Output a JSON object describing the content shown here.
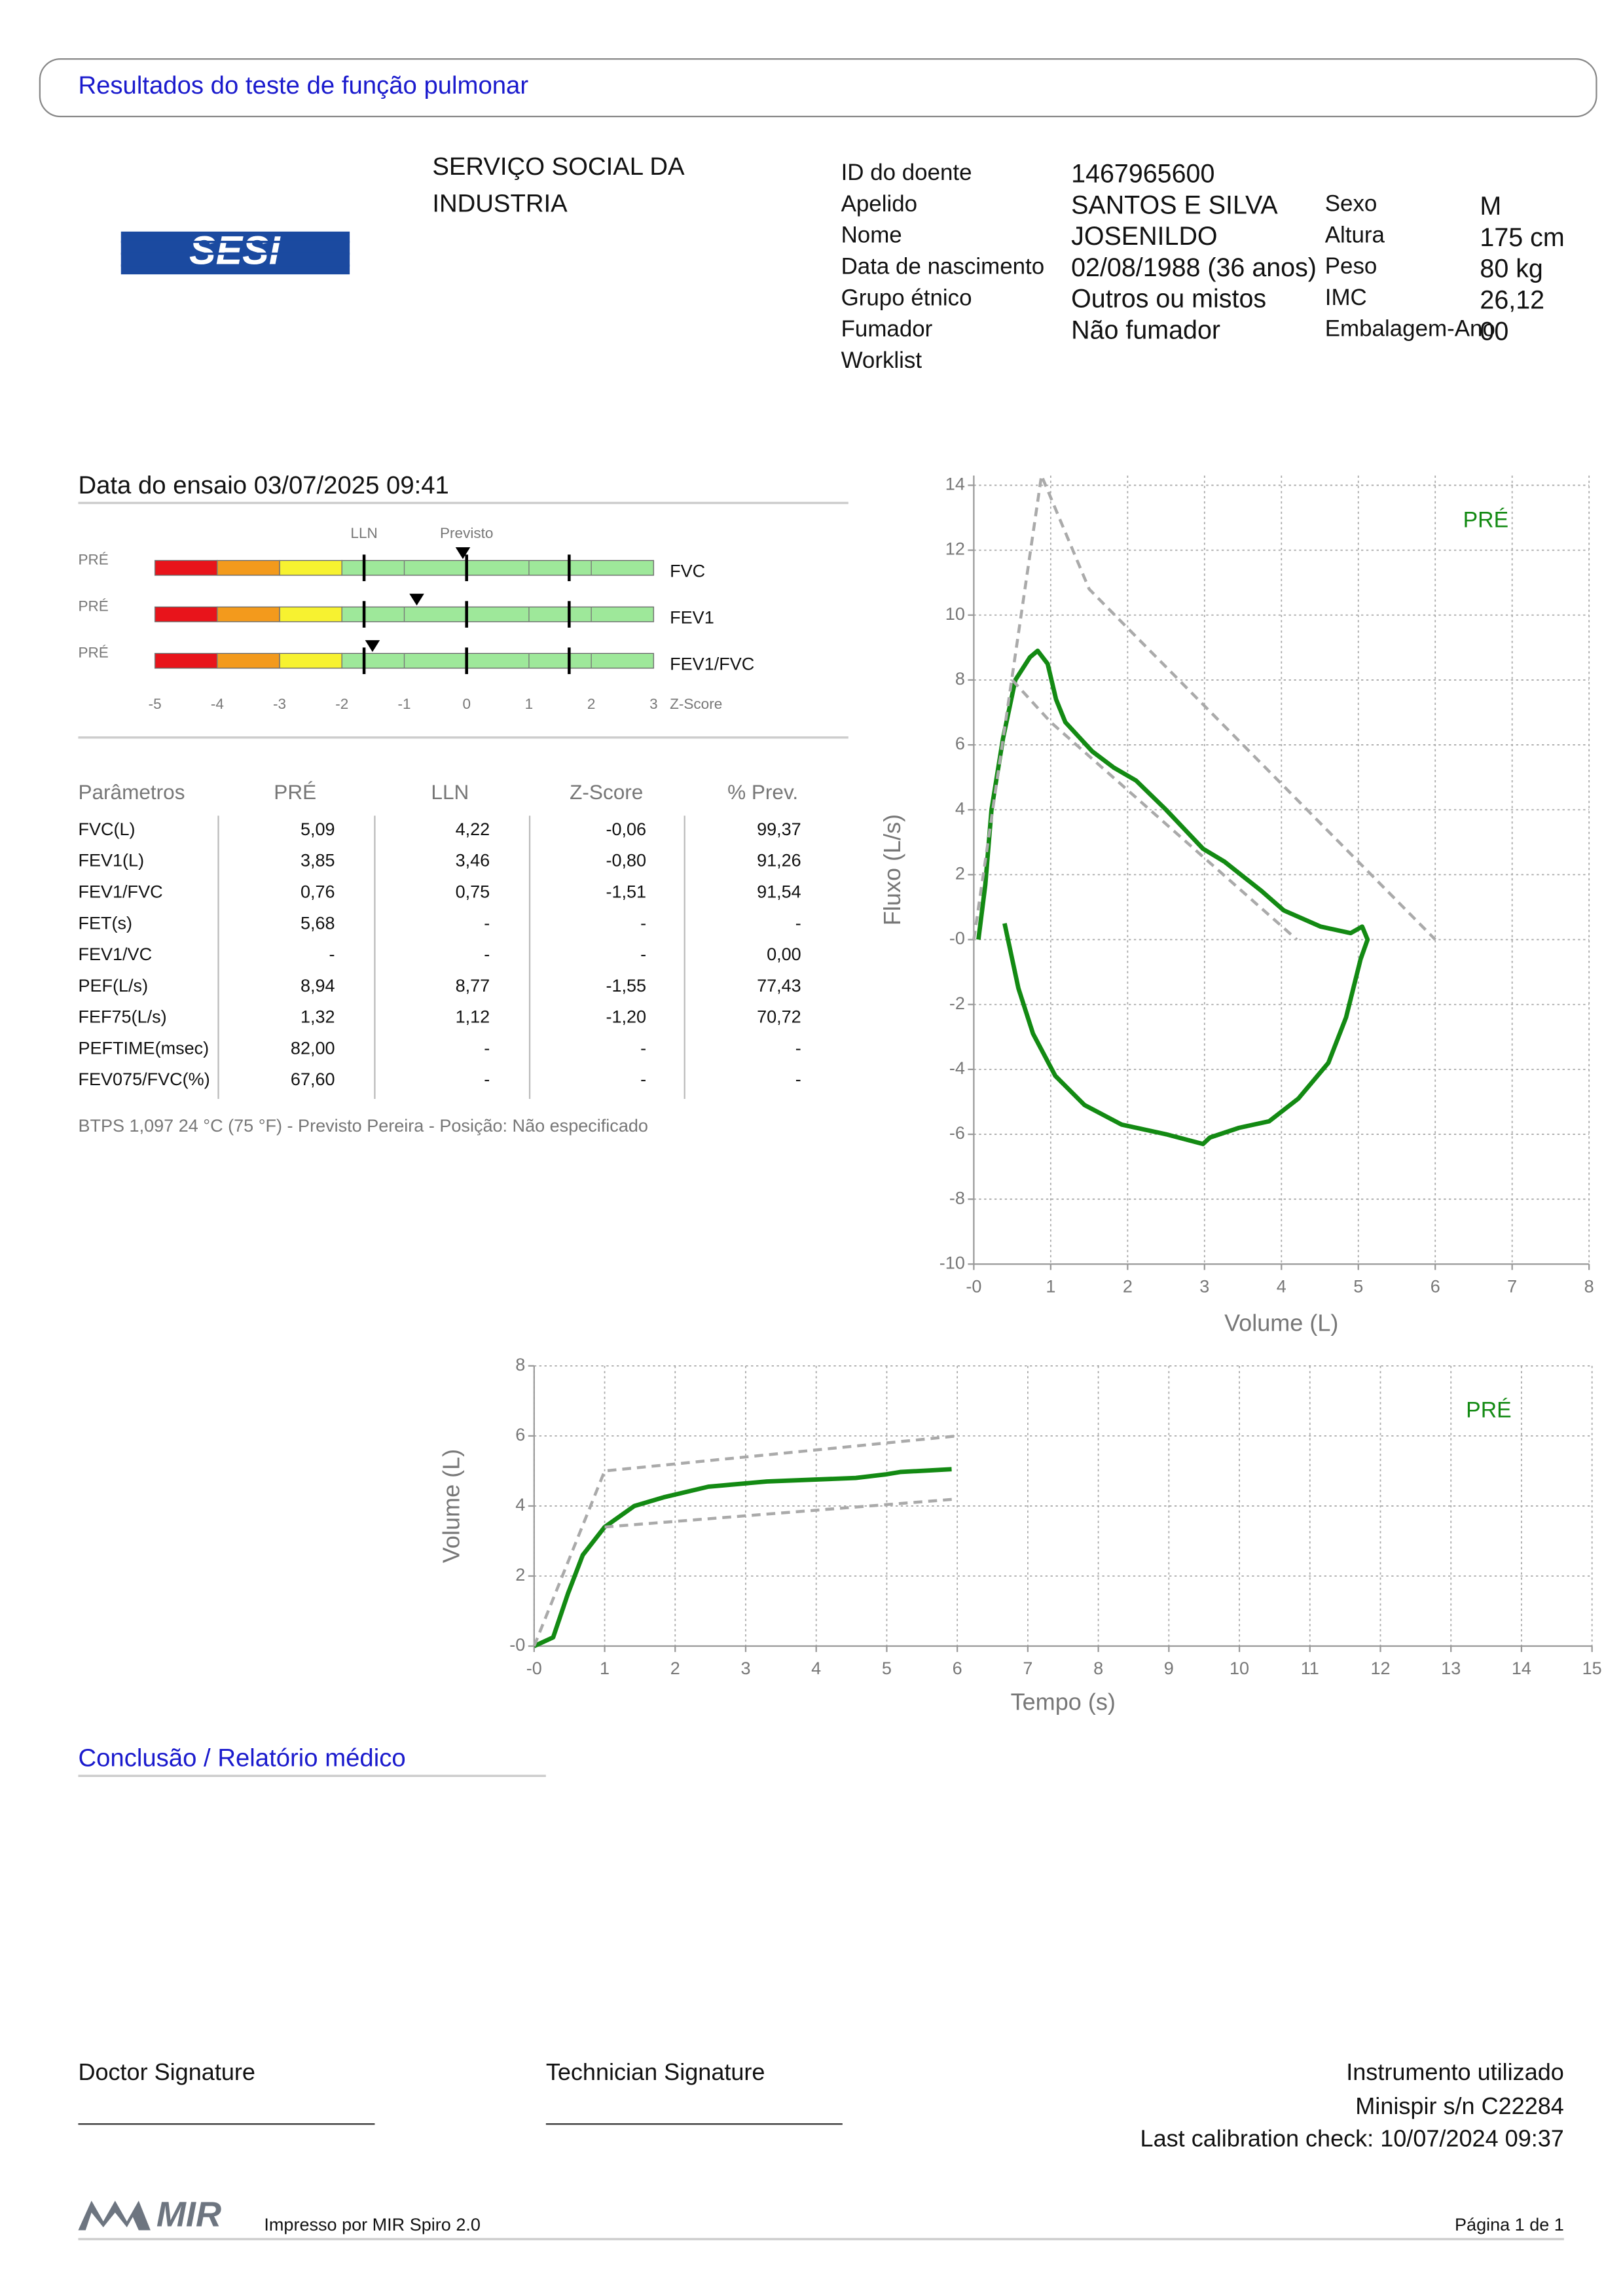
{
  "header": {
    "title": "Resultados do teste de função pulmonar"
  },
  "institution": {
    "name_lines": [
      "SERVIÇO SOCIAL DA",
      "INDUSTRIA"
    ],
    "logo": "SESI"
  },
  "patient": {
    "left": [
      {
        "label": "ID do doente",
        "value": "1467965600"
      },
      {
        "label": "Apelido",
        "value": "SANTOS E SILVA"
      },
      {
        "label": "Nome",
        "value": "JOSENILDO"
      },
      {
        "label": "Data de nascimento",
        "value": "02/08/1988 (36 anos)"
      },
      {
        "label": "Grupo étnico",
        "value": "Outros ou mistos"
      },
      {
        "label": "Fumador",
        "value": "Não fumador"
      },
      {
        "label": "Worklist"
      }
    ],
    "right": [
      {
        "label": "Sexo",
        "value": "M"
      },
      {
        "label": "Altura",
        "value": "175 cm"
      },
      {
        "label": "Peso",
        "value": "80 kg"
      },
      {
        "label": "IMC",
        "value": "26,12"
      },
      {
        "label": "Embalagem-Ano",
        "value": "00"
      }
    ]
  },
  "test_date": "Data do ensaio 03/07/2025 09:41",
  "zscore": {
    "xlim": [
      -5,
      3
    ],
    "xticks": [
      -5,
      -4,
      -3,
      -2,
      -1,
      0,
      1,
      2,
      3
    ],
    "axis_label": "Z-Score",
    "bands": [
      {
        "from": -5,
        "to": -4,
        "color": "#e8141b"
      },
      {
        "from": -4,
        "to": -3,
        "color": "#f39a1c"
      },
      {
        "from": -3,
        "to": -2,
        "color": "#f7f230"
      },
      {
        "from": -2,
        "to": 3,
        "color": "#9ee89a"
      }
    ],
    "reference_lines": [
      {
        "value": -1.645,
        "label": "LLN"
      },
      {
        "value": 0,
        "label": "Previsto"
      },
      {
        "value": 1.645
      }
    ],
    "rows": [
      {
        "prefix": "PRÉ",
        "label": "FVC",
        "value": -0.06
      },
      {
        "prefix": "PRÉ",
        "label": "FEV1",
        "value": -0.8
      },
      {
        "prefix": "PRÉ",
        "label": "FEV1/FVC",
        "value": -1.51
      }
    ]
  },
  "table": {
    "header": [
      "Parâmetros",
      "PRÉ",
      "LLN",
      "Z-Score",
      "% Prev."
    ],
    "rows": [
      [
        "FVC(L)",
        "5,09",
        "4,22",
        "-0,06",
        "99,37"
      ],
      [
        "FEV1(L)",
        "3,85",
        "3,46",
        "-0,80",
        "91,26"
      ],
      [
        "FEV1/FVC",
        "0,76",
        "0,75",
        "-1,51",
        "91,54"
      ],
      [
        "FET(s)",
        "5,68",
        "-",
        "-",
        "-"
      ],
      [
        "FEV1/VC",
        "-",
        "-",
        "-",
        "0,00"
      ],
      [
        "PEF(L/s)",
        "8,94",
        "8,77",
        "-1,55",
        "77,43"
      ],
      [
        "FEF75(L/s)",
        "1,32",
        "1,12",
        "-1,20",
        "70,72"
      ],
      [
        "PEFTIME(msec)",
        "82,00",
        "-",
        "-",
        "-"
      ],
      [
        "FEV075/FVC(%)",
        "67,60",
        "-",
        "-",
        "-"
      ]
    ]
  },
  "note": "BTPS 1,097 24 °C (75 °F) - Previsto Pereira - Posição: Não especificado",
  "chart_data": [
    {
      "type": "line",
      "x_label": "Volume (L)",
      "y_label": "Fluxo (L/s)",
      "xlim": [
        0,
        8
      ],
      "ylim": [
        -10,
        14.3
      ],
      "xticks": [
        {
          "value": 0,
          "label": "-0"
        },
        1,
        2,
        3,
        4,
        5,
        6,
        7,
        8
      ],
      "yticks": [
        -10,
        -8,
        -6,
        -4,
        -2,
        {
          "value": 0,
          "label": "-0"
        },
        2,
        4,
        6,
        8,
        10,
        12,
        14
      ],
      "grid": true,
      "legend": "top-right",
      "series": [
        {
          "name": "PRÉ",
          "color": "#138a13",
          "width": 3,
          "x": [
            0.06,
            0.15,
            0.23,
            0.38,
            0.54,
            0.73,
            0.83,
            0.96,
            1.07,
            1.19,
            1.54,
            1.82,
            2.11,
            2.5,
            2.98,
            3.26,
            3.74,
            4.03,
            4.51,
            4.9,
            5.05,
            5.12,
            5.03,
            4.84,
            4.61,
            4.22,
            3.84,
            3.45,
            3.07,
            2.98,
            2.5,
            1.92,
            1.44,
            1.06,
            0.77,
            0.58,
            0.4
          ],
          "values": [
            0,
            1.7,
            4.0,
            6.2,
            8.0,
            8.7,
            8.9,
            8.5,
            7.4,
            6.7,
            5.8,
            5.3,
            4.9,
            4.0,
            2.8,
            2.4,
            1.5,
            0.9,
            0.4,
            0.2,
            0.4,
            0.0,
            -0.6,
            -2.4,
            -3.8,
            -4.9,
            -5.6,
            -5.8,
            -6.1,
            -6.3,
            -6.0,
            -5.7,
            -5.1,
            -4.2,
            -2.9,
            -1.5,
            0.5
          ]
        },
        {
          "color": "#aaaaaa",
          "dash": true,
          "width": 2,
          "x": [
            0,
            0.88,
            1.5,
            6
          ],
          "values": [
            0,
            14.3,
            10.8,
            0
          ]
        },
        {
          "color": "#aaaaaa",
          "dash": true,
          "width": 2,
          "x": [
            0.5,
            1.0,
            4.2
          ],
          "values": [
            8.0,
            6.7,
            0
          ]
        }
      ]
    },
    {
      "type": "line",
      "x_label": "Tempo (s)",
      "y_label": "Volume (L)",
      "xlim": [
        0,
        15
      ],
      "ylim": [
        0,
        8
      ],
      "xticks": [
        {
          "value": 0,
          "label": "-0"
        },
        1,
        2,
        3,
        4,
        5,
        6,
        7,
        8,
        9,
        10,
        11,
        12,
        13,
        14,
        15
      ],
      "yticks": [
        {
          "value": 0,
          "label": "-0"
        },
        2,
        4,
        6,
        8
      ],
      "grid": true,
      "legend": "top-right",
      "series": [
        {
          "name": "PRÉ",
          "color": "#138a13",
          "width": 3,
          "x": [
            0,
            0.27,
            0.48,
            0.69,
            1.0,
            1.42,
            1.84,
            2.47,
            3.3,
            4.56,
            4.98,
            5.19,
            5.92
          ],
          "values": [
            0,
            0.25,
            1.5,
            2.6,
            3.4,
            4.0,
            4.25,
            4.55,
            4.7,
            4.8,
            4.9,
            4.97,
            5.05
          ]
        },
        {
          "color": "#aaaaaa",
          "dash": true,
          "width": 2,
          "x": [
            0,
            1,
            6
          ],
          "values": [
            0,
            5,
            6
          ]
        },
        {
          "color": "#aaaaaa",
          "dash": true,
          "width": 2,
          "x": [
            1,
            6
          ],
          "values": [
            3.4,
            4.2
          ]
        }
      ]
    }
  ],
  "conclusion": {
    "title": "Conclusão / Relatório médico"
  },
  "footer": {
    "doctor": "Doctor Signature",
    "technician": "Technician Signature",
    "instrument_lines": [
      "Instrumento utilizado",
      "Minispir s/n C22284",
      "Last calibration check: 10/07/2024 09:37"
    ],
    "logo": "MIR",
    "printed_by": "Impresso por MIR Spiro 2.0",
    "page": "Página 1 de 1"
  }
}
